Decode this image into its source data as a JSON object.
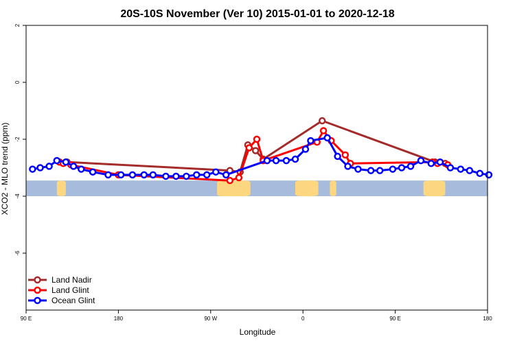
{
  "chart_data": {
    "type": "line",
    "title": "20S-10S November (Ver 10)   2015-01-01 to 2020-12-18",
    "xlabel": "Longitude",
    "ylabel": "XCO2 - MLO trend (ppm)",
    "xlim": [
      90,
      450
    ],
    "ylim": [
      -8,
      2
    ],
    "x_ticks": [
      {
        "value": 90,
        "label": "90 E"
      },
      {
        "value": 162,
        "label": "180"
      },
      {
        "value": 234,
        "label": "90 W"
      },
      {
        "value": 306,
        "label": "0"
      },
      {
        "value": 378,
        "label": "90 E"
      },
      {
        "value": 450,
        "label": "180"
      }
    ],
    "y_ticks": [
      {
        "value": 2,
        "label": "2"
      },
      {
        "value": 0,
        "label": "0"
      },
      {
        "value": -2,
        "label": "-2"
      },
      {
        "value": -4,
        "label": "-4"
      },
      {
        "value": -6,
        "label": "-6"
      }
    ],
    "grid": false,
    "legend_position": "bottom-left",
    "colors": {
      "ocean_band": "#a7bcdc",
      "land_band": "#fcd77f"
    },
    "land_band": {
      "y_range": [
        -4,
        -3.45
      ],
      "segments": [
        [
          114,
          121
        ],
        [
          239,
          265
        ],
        [
          300,
          318
        ],
        [
          327,
          332
        ],
        [
          400,
          417
        ]
      ]
    },
    "series": [
      {
        "name": "Land Nadir",
        "color": "#a52a2a",
        "points": [
          [
            116,
            -2.8
          ],
          [
            122,
            -2.8
          ],
          [
            249,
            -3.1
          ],
          [
            257,
            -3.15
          ],
          [
            263,
            -2.2
          ],
          [
            269,
            -2.4
          ],
          [
            275,
            -2.7
          ],
          [
            321,
            -1.35
          ],
          [
            409,
            -2.8
          ],
          [
            417,
            -2.85
          ]
        ]
      },
      {
        "name": "Land Glint",
        "color": "#ff0000",
        "points": [
          [
            116,
            -2.8
          ],
          [
            119,
            -2.85
          ],
          [
            125,
            -2.9
          ],
          [
            162,
            -3.25
          ],
          [
            249,
            -3.45
          ],
          [
            256,
            -3.35
          ],
          [
            264,
            -2.3
          ],
          [
            270,
            -2.0
          ],
          [
            275,
            -2.75
          ],
          [
            317,
            -2.1
          ],
          [
            322,
            -1.7
          ],
          [
            328,
            -2.05
          ],
          [
            339,
            -2.55
          ],
          [
            343,
            -2.85
          ],
          [
            407,
            -2.8
          ],
          [
            411,
            -2.85
          ],
          [
            419,
            -2.9
          ]
        ]
      },
      {
        "name": "Ocean Glint",
        "color": "#0000ff",
        "points": [
          [
            95,
            -3.05
          ],
          [
            101,
            -3.0
          ],
          [
            108,
            -2.95
          ],
          [
            114,
            -2.75
          ],
          [
            121,
            -2.8
          ],
          [
            127,
            -2.95
          ],
          [
            133,
            -3.05
          ],
          [
            142,
            -3.15
          ],
          [
            154,
            -3.25
          ],
          [
            164,
            -3.25
          ],
          [
            173,
            -3.25
          ],
          [
            182,
            -3.25
          ],
          [
            189,
            -3.25
          ],
          [
            199,
            -3.3
          ],
          [
            207,
            -3.3
          ],
          [
            215,
            -3.3
          ],
          [
            223,
            -3.25
          ],
          [
            231,
            -3.25
          ],
          [
            238,
            -3.15
          ],
          [
            246,
            -3.25
          ],
          [
            278,
            -2.75
          ],
          [
            285,
            -2.75
          ],
          [
            293,
            -2.75
          ],
          [
            300,
            -2.7
          ],
          [
            308,
            -2.35
          ],
          [
            312,
            -2.05
          ],
          [
            325,
            -1.95
          ],
          [
            333,
            -2.6
          ],
          [
            341,
            -2.95
          ],
          [
            349,
            -3.05
          ],
          [
            359,
            -3.1
          ],
          [
            366,
            -3.1
          ],
          [
            376,
            -3.05
          ],
          [
            383,
            -3.0
          ],
          [
            390,
            -2.95
          ],
          [
            398,
            -2.75
          ],
          [
            406,
            -2.85
          ],
          [
            413,
            -2.8
          ],
          [
            421,
            -3.0
          ],
          [
            429,
            -3.05
          ],
          [
            436,
            -3.1
          ],
          [
            444,
            -3.2
          ],
          [
            451,
            -3.25
          ]
        ]
      }
    ]
  }
}
